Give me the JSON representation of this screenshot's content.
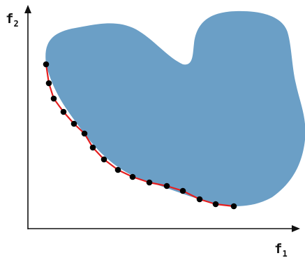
{
  "labels": {
    "y_axis": {
      "main": "f",
      "sub": "2"
    },
    "x_axis": {
      "main": "f",
      "sub": "1"
    }
  },
  "colors": {
    "region_fill": "#6b9fc6",
    "front_line": "#e41f1f",
    "front_points": "#000000",
    "axes": "#111111"
  }
}
